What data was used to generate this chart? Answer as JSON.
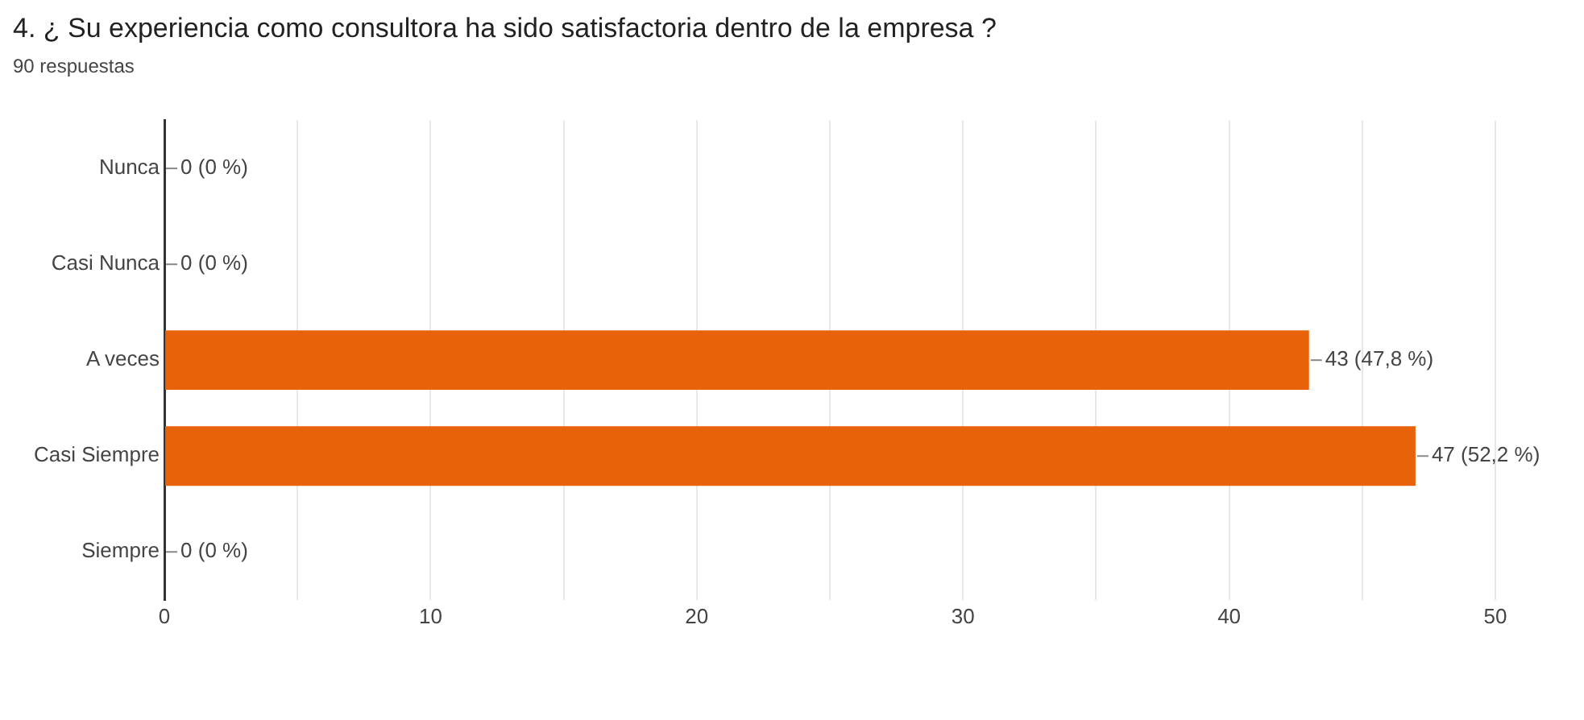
{
  "chart_data": {
    "type": "bar",
    "orientation": "horizontal",
    "title": "4. ¿ Su experiencia como consultora ha sido satisfactoria dentro de la empresa ?",
    "subtitle": "90 respuestas",
    "categories": [
      "Nunca",
      "Casi Nunca",
      "A veces",
      "Casi Siempre",
      "Siempre"
    ],
    "values": [
      0,
      0,
      43,
      47,
      0
    ],
    "color": "#e8620a",
    "value_labels": [
      "0 (0 %)",
      "0 (0 %)",
      "43 (47,8 %)",
      "47 (52,2 %)",
      "0 (0 %)"
    ],
    "xlim": [
      0,
      50
    ],
    "xticks": [
      0,
      {
        "value": 5,
        "label": null
      },
      10,
      {
        "value": 15,
        "label": null
      },
      20,
      {
        "value": 25,
        "label": null
      },
      30,
      {
        "value": 35,
        "label": null
      },
      40,
      {
        "value": 45,
        "label": null
      },
      50
    ],
    "grid": "x",
    "legend": false
  }
}
